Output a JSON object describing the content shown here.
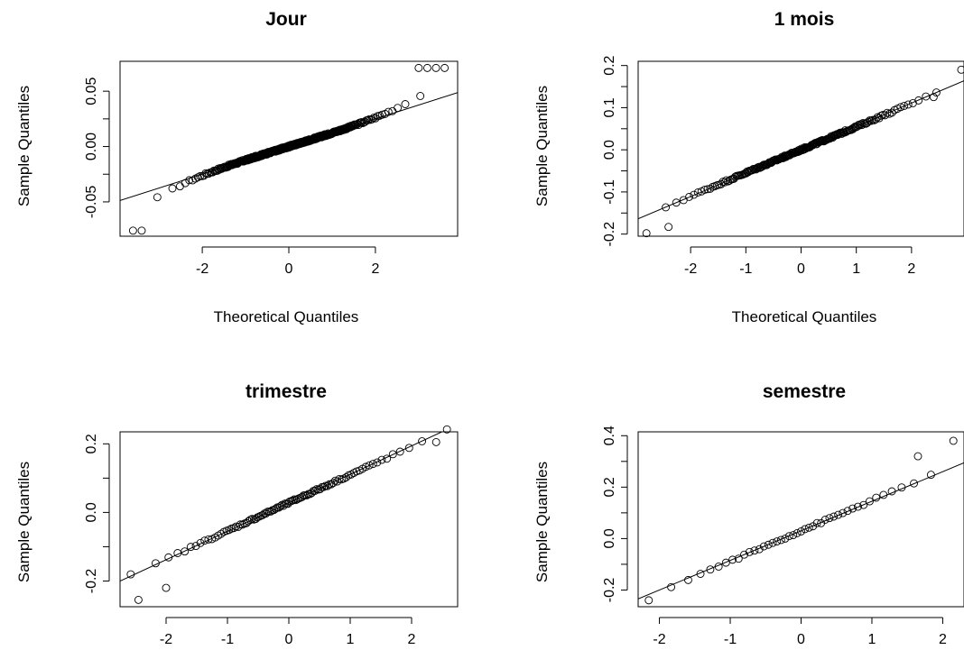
{
  "chart_data": [
    {
      "type": "scatter",
      "title": "Jour",
      "xlabel": "Theoretical Quantiles",
      "ylabel": "Sample Quantiles",
      "xlim": [
        -3.9,
        3.9
      ],
      "ylim": [
        -0.081,
        0.077
      ],
      "xticks": [
        -2,
        0,
        2
      ],
      "xtick_labels": [
        "-2",
        "0",
        "2"
      ],
      "yticks": [
        -0.05,
        0.0,
        0.05
      ],
      "ytick_labels": [
        "-0.05",
        "0.00",
        "0.05"
      ],
      "reference_line": {
        "slope": 0.0125,
        "intercept": 0.0
      },
      "sample": {
        "n": 420,
        "center_slope": 0.0122,
        "tail_strength": 0.009,
        "tail_power": 4
      },
      "extreme_points": [
        [
          -3.6,
          -0.076
        ],
        [
          -3.4,
          -0.076
        ],
        [
          3.0,
          0.071
        ],
        [
          3.2,
          0.071
        ],
        [
          3.4,
          0.071
        ],
        [
          3.6,
          0.071
        ]
      ]
    },
    {
      "type": "scatter",
      "title": "1 mois",
      "xlabel": "Theoretical Quantiles",
      "ylabel": "Sample Quantiles",
      "xlim": [
        -2.95,
        2.95
      ],
      "ylim": [
        -0.205,
        0.21
      ],
      "xticks": [
        -2,
        -1,
        0,
        1,
        2
      ],
      "xtick_labels": [
        "-2",
        "-1",
        "0",
        "1",
        "2"
      ],
      "yticks": [
        -0.2,
        -0.1,
        0.0,
        0.1,
        0.2
      ],
      "ytick_labels": [
        "-0.2",
        "-0.1",
        "0.0",
        "0.1",
        "0.2"
      ],
      "reference_line": {
        "slope": 0.0555,
        "intercept": 0.0
      },
      "sample": {
        "n": 210,
        "center_slope": 0.0545,
        "tail_strength": 0.004,
        "tail_power": 3
      },
      "extreme_points": [
        [
          -2.8,
          -0.198
        ],
        [
          -2.4,
          -0.183
        ],
        [
          2.4,
          0.125
        ],
        [
          2.9,
          0.19
        ]
      ]
    },
    {
      "type": "scatter",
      "title": "trimestre",
      "xlabel": "",
      "ylabel": "Sample Quantiles",
      "xlim": [
        -2.75,
        2.75
      ],
      "ylim": [
        -0.275,
        0.235
      ],
      "xticks": [
        -2,
        -1,
        0,
        1,
        2
      ],
      "xtick_labels": [
        "-2",
        "-1",
        "0",
        "1",
        "2"
      ],
      "yticks": [
        -0.2,
        0.0,
        0.2
      ],
      "ytick_labels": [
        "-0.2",
        "0.0",
        "0.2"
      ],
      "reference_line": {
        "slope": 0.083,
        "intercept": 0.028
      },
      "sample": {
        "n": 100,
        "center_slope": 0.082,
        "tail_strength": 0.0,
        "tail_power": 3
      },
      "extreme_points": [
        [
          -2.45,
          -0.255
        ],
        [
          -2.0,
          -0.22
        ],
        [
          2.4,
          0.205
        ]
      ]
    },
    {
      "type": "scatter",
      "title": "semestre",
      "xlabel": "",
      "ylabel": "Sample Quantiles",
      "xlim": [
        -2.3,
        2.3
      ],
      "ylim": [
        -0.265,
        0.415
      ],
      "xticks": [
        -2,
        -1,
        0,
        1,
        2
      ],
      "xtick_labels": [
        "-2",
        "-1",
        "0",
        "1",
        "2"
      ],
      "yticks": [
        -0.2,
        0.0,
        0.2,
        0.4
      ],
      "ytick_labels": [
        "-0.2",
        "0.0",
        "0.2",
        "0.4"
      ],
      "reference_line": {
        "slope": 0.115,
        "intercept": 0.03
      },
      "sample": {
        "n": 45,
        "center_slope": 0.118,
        "tail_strength": 0.0,
        "tail_power": 3
      },
      "extreme_points": [
        [
          -2.15,
          -0.24
        ],
        [
          1.65,
          0.32
        ],
        [
          2.15,
          0.38
        ]
      ]
    }
  ]
}
